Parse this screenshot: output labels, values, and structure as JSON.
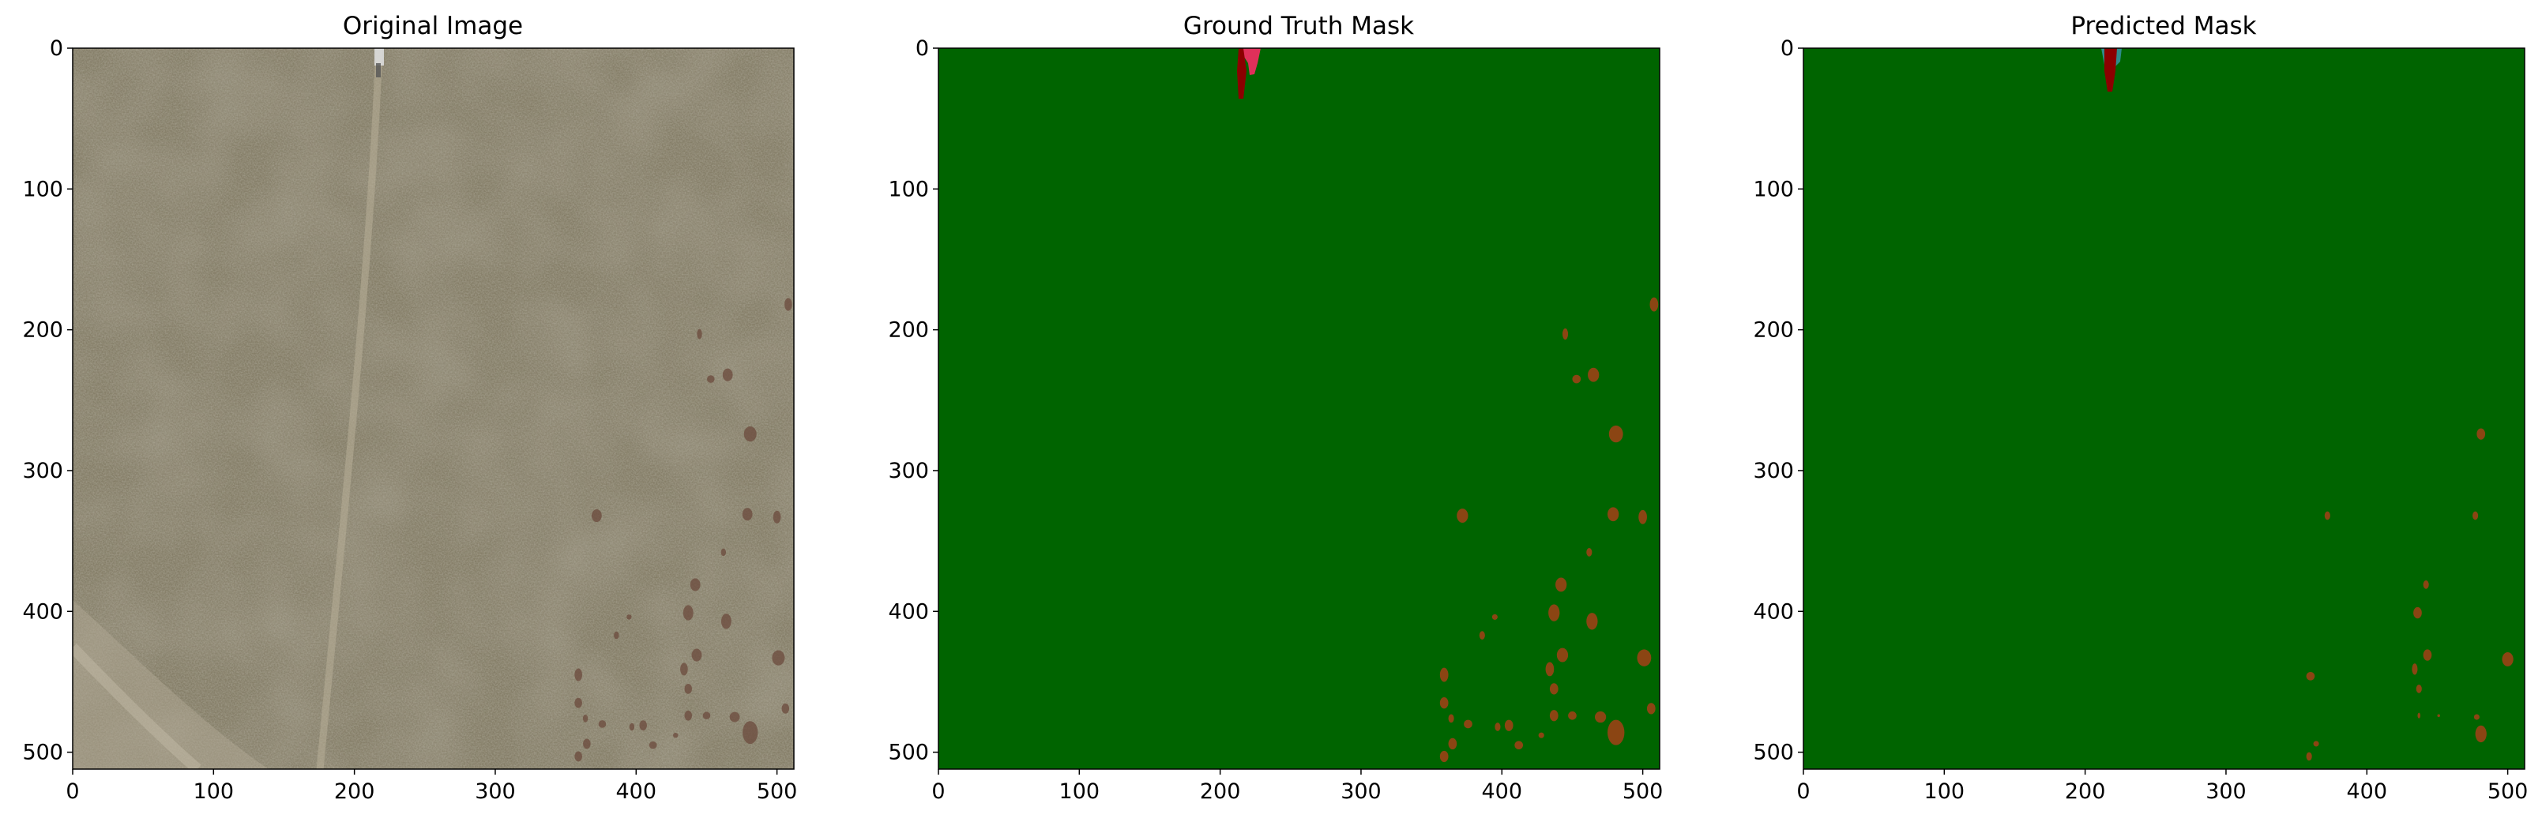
{
  "figure": {
    "panels": [
      {
        "id": "original",
        "title": "Original Image",
        "type": "photo",
        "description_colors": {
          "grass": "#8d8670",
          "grass_dark": "#6e6a57",
          "path": "#b0a896",
          "dark_spot": "#6b4a3c"
        }
      },
      {
        "id": "ground-truth",
        "title": "Ground Truth Mask",
        "type": "mask"
      },
      {
        "id": "predicted",
        "title": "Predicted Mask",
        "type": "mask"
      }
    ],
    "axis": {
      "xticks": [
        "0",
        "100",
        "200",
        "300",
        "400",
        "500"
      ],
      "yticks": [
        "0",
        "100",
        "200",
        "300",
        "400",
        "500"
      ],
      "xlim": [
        0,
        512
      ],
      "ylim": [
        512,
        0
      ]
    },
    "colors": {
      "mask_background": "#006400",
      "mask_blob": "#8b4513",
      "mask_red": "#e0305a",
      "mask_darkred": "#8b0000",
      "pred_teal": "#2e8b8b"
    },
    "gt_blobs": [
      [
        445,
        203,
        2,
        4
      ],
      [
        453,
        235,
        3,
        3
      ],
      [
        465,
        232,
        4,
        5
      ],
      [
        481,
        274,
        5,
        6
      ],
      [
        508,
        182,
        3,
        5
      ],
      [
        372,
        332,
        4,
        5
      ],
      [
        479,
        331,
        4,
        5
      ],
      [
        500,
        333,
        3,
        5
      ],
      [
        462,
        358,
        2,
        3
      ],
      [
        442,
        381,
        4,
        5
      ],
      [
        437,
        401,
        4,
        6
      ],
      [
        464,
        407,
        4,
        6
      ],
      [
        386,
        417,
        2,
        3
      ],
      [
        395,
        404,
        2,
        2
      ],
      [
        443,
        431,
        4,
        5
      ],
      [
        501,
        433,
        5,
        6
      ],
      [
        359,
        445,
        3,
        5
      ],
      [
        434,
        441,
        3,
        5
      ],
      [
        437,
        455,
        3,
        4
      ],
      [
        359,
        465,
        3,
        4
      ],
      [
        364,
        476,
        2,
        3
      ],
      [
        376,
        480,
        3,
        3
      ],
      [
        397,
        482,
        2,
        3
      ],
      [
        405,
        481,
        3,
        4
      ],
      [
        437,
        474,
        3,
        4
      ],
      [
        450,
        474,
        3,
        3
      ],
      [
        470,
        475,
        4,
        4
      ],
      [
        506,
        469,
        3,
        4
      ],
      [
        481,
        486,
        6,
        9
      ],
      [
        428,
        488,
        2,
        2
      ],
      [
        412,
        495,
        3,
        3
      ],
      [
        365,
        494,
        3,
        4
      ],
      [
        359,
        503,
        3,
        4
      ]
    ],
    "pred_blobs": [
      [
        481,
        274,
        3,
        4
      ],
      [
        477,
        332,
        2,
        3
      ],
      [
        372,
        332,
        2,
        3
      ],
      [
        442,
        381,
        2,
        3
      ],
      [
        436,
        401,
        3,
        4
      ],
      [
        443,
        431,
        3,
        4
      ],
      [
        500,
        434,
        4,
        5
      ],
      [
        434,
        441,
        2,
        4
      ],
      [
        437,
        455,
        2,
        3
      ],
      [
        437,
        474,
        1,
        2
      ],
      [
        451,
        474,
        1,
        1
      ],
      [
        478,
        475,
        2,
        2
      ],
      [
        481,
        487,
        4,
        6
      ],
      [
        360,
        446,
        3,
        3
      ],
      [
        364,
        494,
        2,
        2
      ],
      [
        359,
        503,
        2,
        3
      ]
    ]
  }
}
